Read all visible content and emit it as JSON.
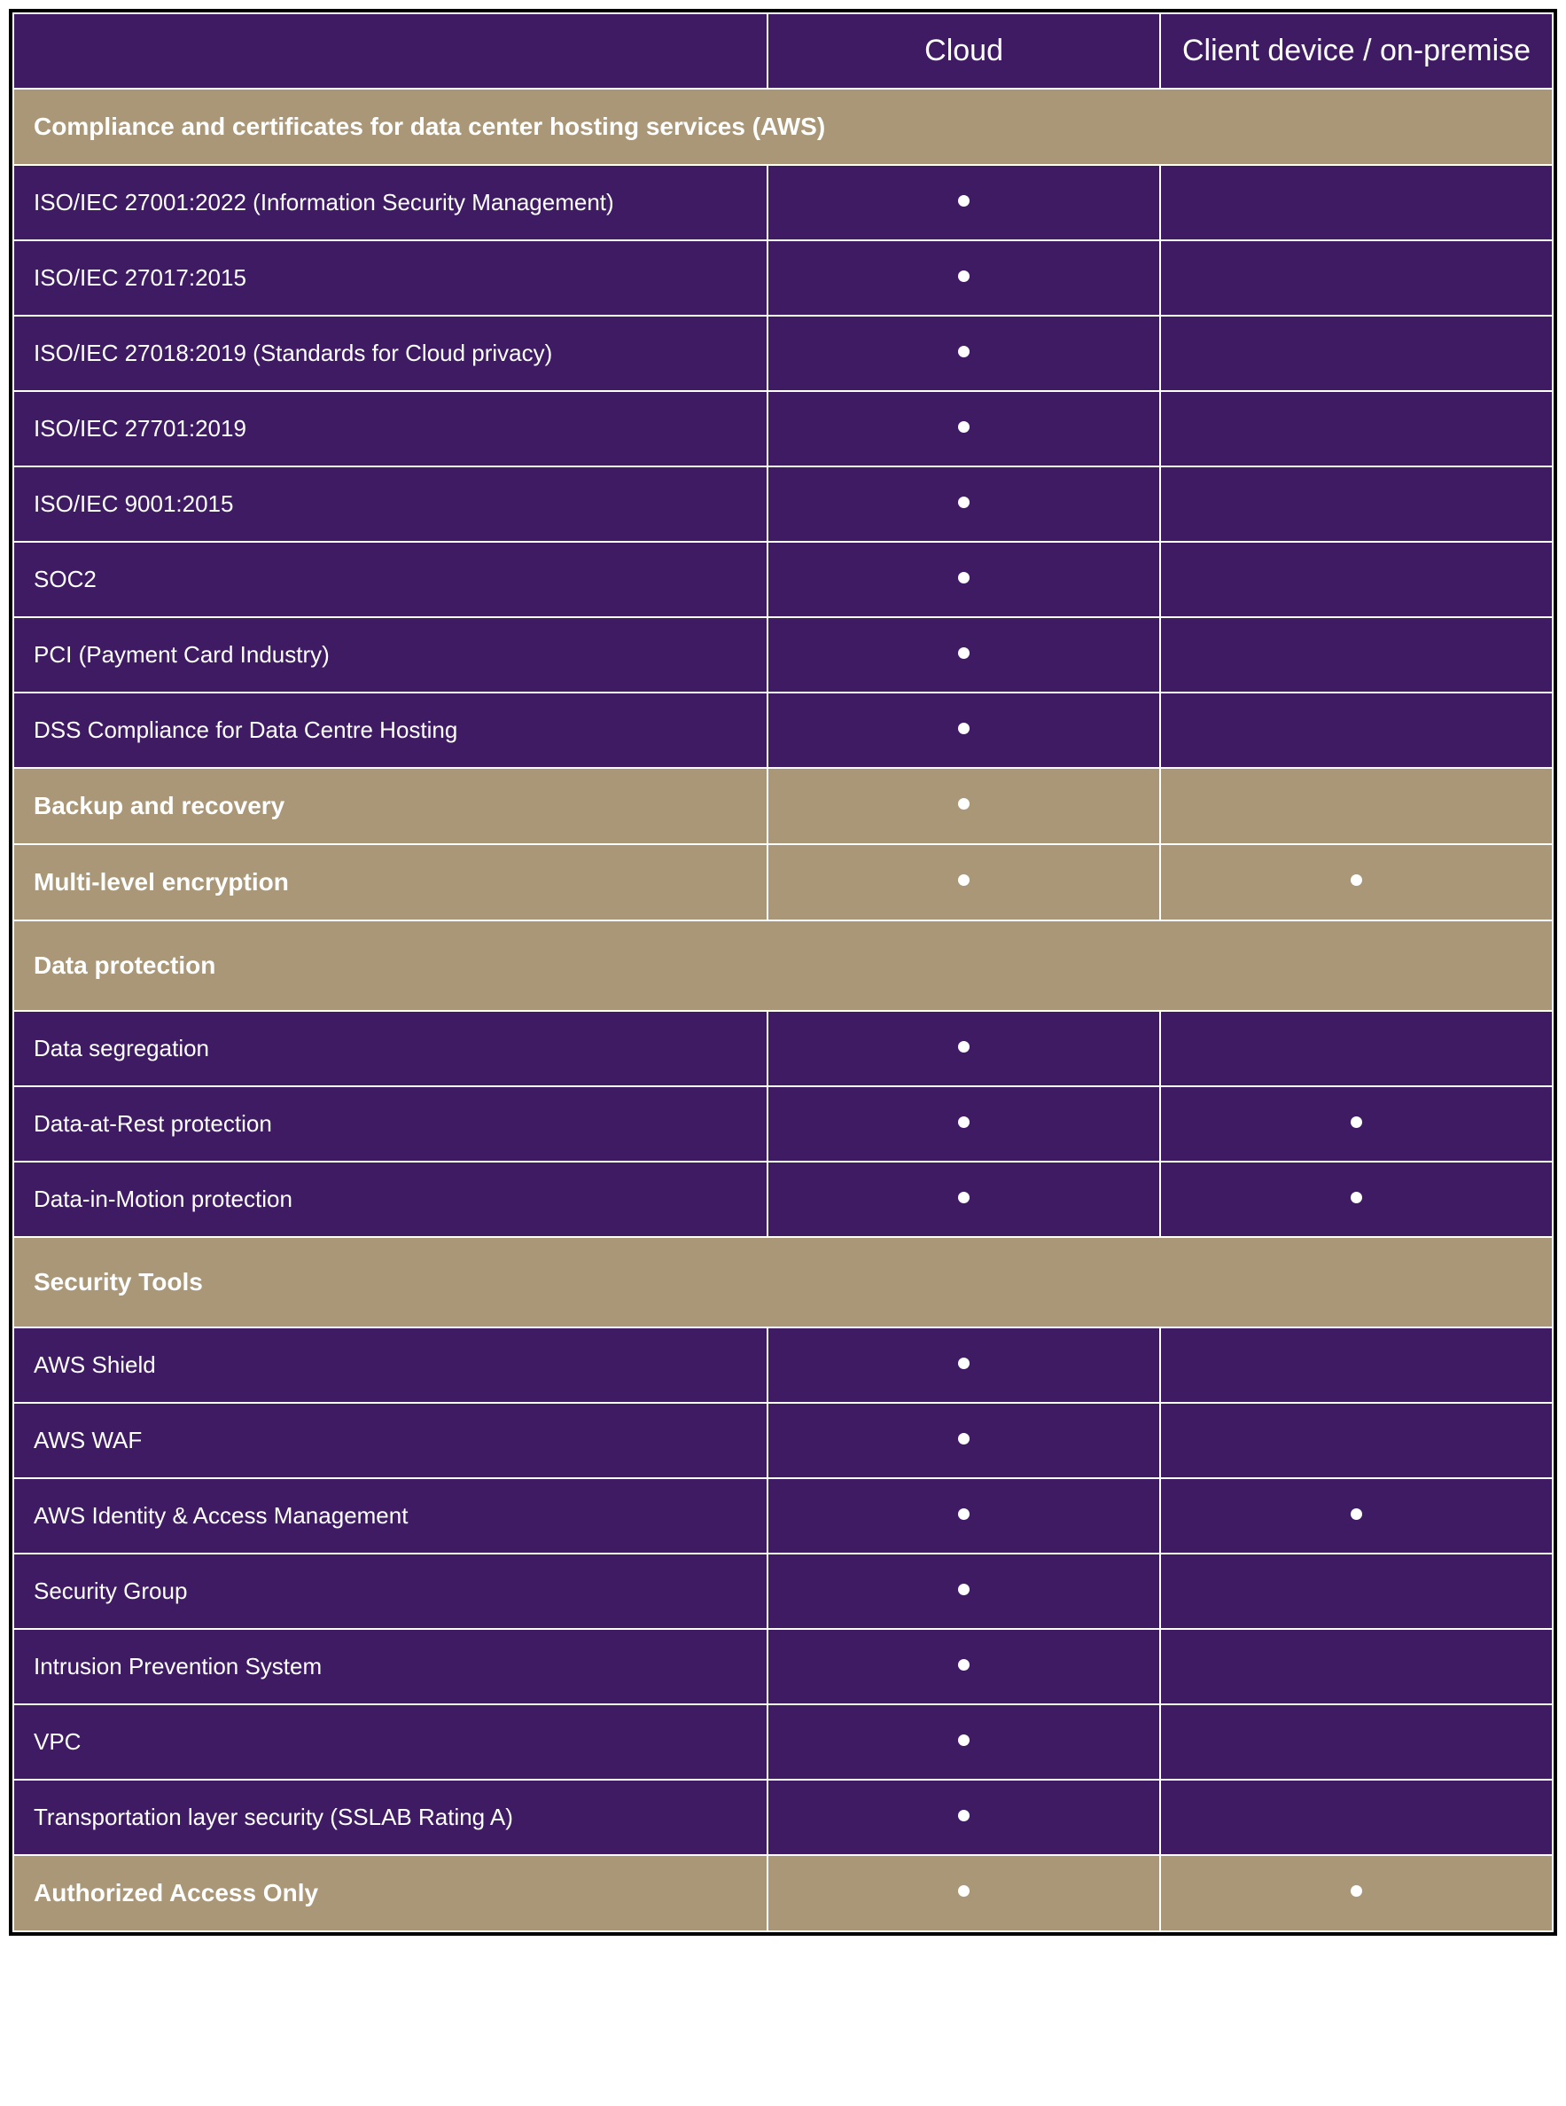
{
  "columns": {
    "label": "",
    "cloud": "Cloud",
    "onprem": "Client device / on-premise"
  },
  "styling": {
    "header_bg": "#3f1b63",
    "row_bg": "#3f1b63",
    "section_bg": "#a99778",
    "text_color": "#ffffff",
    "border_color": "#ffffff",
    "outer_border_color": "#000000",
    "bullet_color": "#ffffff",
    "header_fontsize": 34,
    "section_fontsize": 28,
    "row_fontsize": 26,
    "col_widths_pct": [
      49,
      25.5,
      25.5
    ]
  },
  "rows": [
    {
      "type": "section",
      "label": "Compliance and certificates for data center hosting services (AWS)",
      "cloud": false,
      "onprem": false,
      "span": true
    },
    {
      "type": "row",
      "label": "ISO/IEC 27001:2022 (Information Security Management)",
      "cloud": true,
      "onprem": false
    },
    {
      "type": "row",
      "label": "ISO/IEC 27017:2015",
      "cloud": true,
      "onprem": false
    },
    {
      "type": "row",
      "label": "ISO/IEC 27018:2019 (Standards for Cloud privacy)",
      "cloud": true,
      "onprem": false
    },
    {
      "type": "row",
      "label": "ISO/IEC 27701:2019",
      "cloud": true,
      "onprem": false
    },
    {
      "type": "row",
      "label": "ISO/IEC 9001:2015",
      "cloud": true,
      "onprem": false
    },
    {
      "type": "row",
      "label": "SOC2",
      "cloud": true,
      "onprem": false
    },
    {
      "type": "row",
      "label": "PCI (Payment Card Industry)",
      "cloud": true,
      "onprem": false
    },
    {
      "type": "row",
      "label": "DSS Compliance for Data Centre Hosting",
      "cloud": true,
      "onprem": false
    },
    {
      "type": "section-dot",
      "label": "Backup and recovery",
      "cloud": true,
      "onprem": false
    },
    {
      "type": "section-dot",
      "label": "Multi-level encryption",
      "cloud": true,
      "onprem": true
    },
    {
      "type": "section",
      "label": "Data protection",
      "cloud": false,
      "onprem": false,
      "span": true,
      "tall": true
    },
    {
      "type": "row",
      "label": "Data segregation",
      "cloud": true,
      "onprem": false
    },
    {
      "type": "row",
      "label": "Data-at-Rest protection",
      "cloud": true,
      "onprem": true
    },
    {
      "type": "row",
      "label": "Data-in-Motion protection",
      "cloud": true,
      "onprem": true
    },
    {
      "type": "section",
      "label": "Security Tools",
      "cloud": false,
      "onprem": false,
      "span": true,
      "tall": true
    },
    {
      "type": "row",
      "label": "AWS Shield",
      "cloud": true,
      "onprem": false
    },
    {
      "type": "row",
      "label": "AWS WAF",
      "cloud": true,
      "onprem": false
    },
    {
      "type": "row",
      "label": "AWS Identity & Access Management",
      "cloud": true,
      "onprem": true
    },
    {
      "type": "row",
      "label": "Security Group",
      "cloud": true,
      "onprem": false
    },
    {
      "type": "row",
      "label": "Intrusion Prevention System",
      "cloud": true,
      "onprem": false
    },
    {
      "type": "row",
      "label": "VPC",
      "cloud": true,
      "onprem": false
    },
    {
      "type": "row",
      "label": "Transportation layer security (SSLAB Rating A)",
      "cloud": true,
      "onprem": false
    },
    {
      "type": "section-dot",
      "label": "Authorized Access Only",
      "cloud": true,
      "onprem": true
    }
  ]
}
